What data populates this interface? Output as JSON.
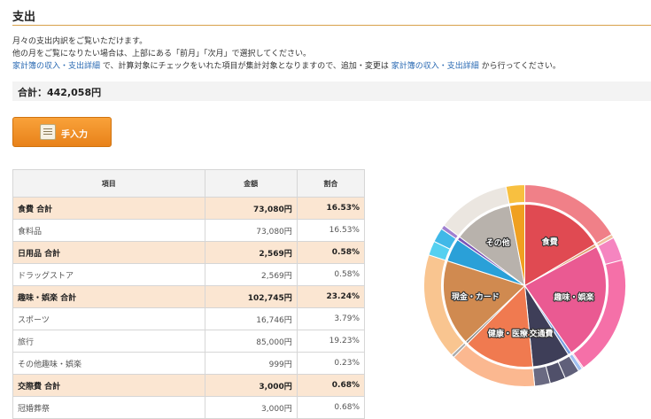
{
  "header": {
    "title": "支出"
  },
  "description": {
    "line1": "月々の支出内訳をご覧いただけます。",
    "line2": "他の月をご覧になりたい場合は、上部にある「前月」「次月」で選択してください。",
    "line3_link1": "家計簿の収入・支出詳細",
    "line3_middle": " で、計算対象にチェックをいれた項目が集計対象となりますので、追加・変更は ",
    "line3_link2": "家計簿の収入・支出詳細",
    "line3_end": " から行ってください。"
  },
  "summary": {
    "total_label": "合計：442,058円"
  },
  "toolbar": {
    "manual_input_label": "手入力"
  },
  "table": {
    "headers": [
      "項目",
      "金額",
      "割合"
    ],
    "rows": [
      {
        "kind": "sub",
        "name": "食費 合計",
        "amount": "73,080円",
        "ratio": "16.53%"
      },
      {
        "kind": "item",
        "name": "食料品",
        "amount": "73,080円",
        "ratio": "16.53%"
      },
      {
        "kind": "sub",
        "name": "日用品 合計",
        "amount": "2,569円",
        "ratio": "0.58%"
      },
      {
        "kind": "item",
        "name": "ドラッグストア",
        "amount": "2,569円",
        "ratio": "0.58%"
      },
      {
        "kind": "sub",
        "name": "趣味・娯楽 合計",
        "amount": "102,745円",
        "ratio": "23.24%"
      },
      {
        "kind": "item",
        "name": "スポーツ",
        "amount": "16,746円",
        "ratio": "3.79%"
      },
      {
        "kind": "item",
        "name": "旅行",
        "amount": "85,000円",
        "ratio": "19.23%"
      },
      {
        "kind": "item",
        "name": "その他趣味・娯楽",
        "amount": "999円",
        "ratio": "0.23%"
      },
      {
        "kind": "sub",
        "name": "交際費 合計",
        "amount": "3,000円",
        "ratio": "0.68%"
      },
      {
        "kind": "item",
        "name": "冠婚葬祭",
        "amount": "3,000円",
        "ratio": "0.68%"
      }
    ]
  },
  "chart_data": {
    "type": "pie",
    "inner": [
      {
        "label": "食費",
        "value": 16.53,
        "color": "#e04a52"
      },
      {
        "label": "",
        "value": 0.58,
        "color": "#e0a070"
      },
      {
        "label": "趣味・娯楽",
        "value": 23.24,
        "color": "#ea5a92"
      },
      {
        "label": "",
        "value": 0.68,
        "color": "#7aa0e0"
      },
      {
        "label": "交通費",
        "value": 7.4,
        "color": "#3e3e58"
      },
      {
        "label": "健康・医療",
        "value": 14.0,
        "color": "#f07a50"
      },
      {
        "label": "",
        "value": 0.5,
        "color": "#888888"
      },
      {
        "label": "現金・カード",
        "value": 17.0,
        "color": "#d08a50"
      },
      {
        "label": "",
        "value": 4.6,
        "color": "#2aa0d8"
      },
      {
        "label": "",
        "value": 0.7,
        "color": "#7a55b8"
      },
      {
        "label": "その他",
        "value": 11.77,
        "color": "#b8b2ac"
      },
      {
        "label": "",
        "value": 3.0,
        "color": "#f0a020"
      }
    ],
    "outer": [
      {
        "value": 16.53,
        "color": "#f08088"
      },
      {
        "value": 0.58,
        "color": "#f0c0a0"
      },
      {
        "value": 3.79,
        "color": "#f585c0"
      },
      {
        "value": 19.23,
        "color": "#f570a8"
      },
      {
        "value": 0.23,
        "color": "#f5a0c8"
      },
      {
        "value": 0.68,
        "color": "#a0c0f0"
      },
      {
        "value": 2.4,
        "color": "#60607a"
      },
      {
        "value": 2.5,
        "color": "#50506a"
      },
      {
        "value": 2.5,
        "color": "#6a6a82"
      },
      {
        "value": 14.0,
        "color": "#fbb890"
      },
      {
        "value": 0.5,
        "color": "#aaaaaa"
      },
      {
        "value": 17.0,
        "color": "#f9c590"
      },
      {
        "value": 2.3,
        "color": "#55d0f0"
      },
      {
        "value": 2.3,
        "color": "#40b8e8"
      },
      {
        "value": 0.7,
        "color": "#a080d0"
      },
      {
        "value": 11.77,
        "color": "#ebe6e0"
      },
      {
        "value": 3.0,
        "color": "#f8c040"
      }
    ]
  }
}
